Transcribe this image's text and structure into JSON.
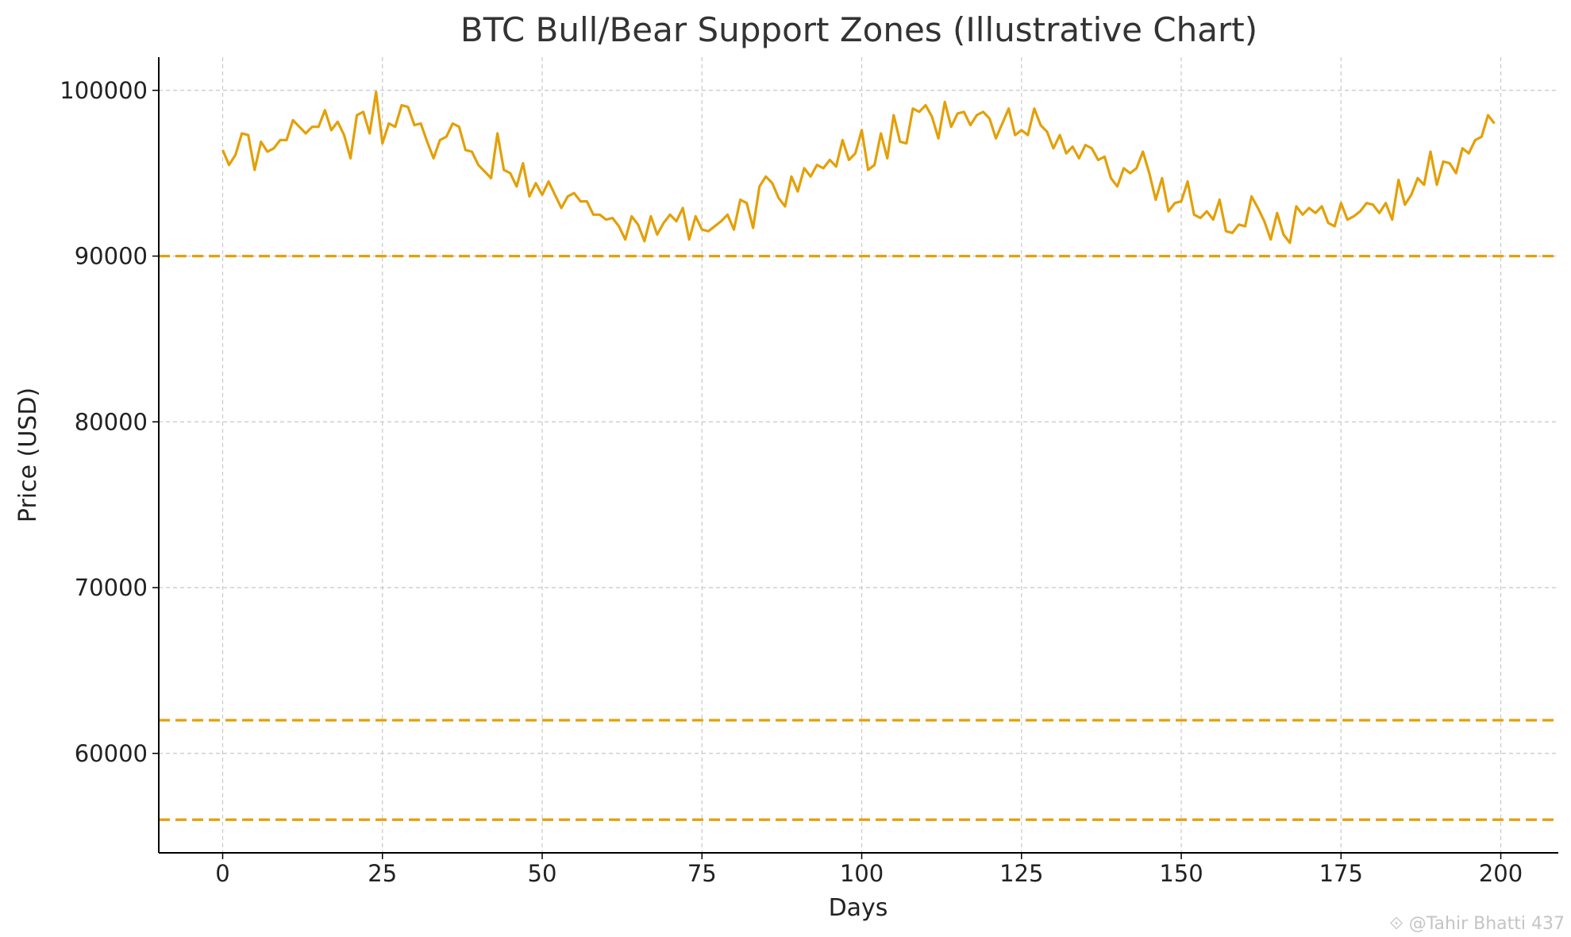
{
  "chart_data": {
    "type": "line",
    "title": "BTC Bull/Bear Support Zones (Illustrative Chart)",
    "xlabel": "Days",
    "ylabel": "Price (USD)",
    "xlim": [
      -10,
      209
    ],
    "ylim": [
      54000,
      102000
    ],
    "x_ticks": [
      0,
      25,
      50,
      75,
      100,
      125,
      150,
      175,
      200
    ],
    "y_ticks": [
      60000,
      70000,
      80000,
      90000,
      100000
    ],
    "grid": true,
    "line_color": "#E3A008",
    "support_color": "#E3A008",
    "support_levels": [
      90000,
      62000,
      56000
    ],
    "series": [
      {
        "x_start": 0,
        "values": [
          96400,
          95500,
          96100,
          97400,
          97300,
          95200,
          96900,
          96300,
          96500,
          97000,
          97000,
          98200,
          97800,
          97400,
          97800,
          97800,
          98800,
          97600,
          98100,
          97300,
          95900,
          98500,
          98700,
          97400,
          99900,
          96800,
          98000,
          97800,
          99100,
          99000,
          97900,
          98000,
          96900,
          95900,
          97000,
          97200,
          98000,
          97800,
          96400,
          96300,
          95500,
          95100,
          94700,
          97400,
          95200,
          95000,
          94200,
          95600,
          93600,
          94400,
          93700,
          94500,
          93700,
          92900,
          93600,
          93800,
          93300,
          93300,
          92500,
          92500,
          92200,
          92300,
          91800,
          91000,
          92400,
          91900,
          90900,
          92400,
          91300,
          92000,
          92500,
          92100,
          92900,
          91000,
          92400,
          91600,
          91500,
          91800,
          92100,
          92500,
          91600,
          93400,
          93200,
          91700,
          94200,
          94800,
          94400,
          93500,
          93000,
          94800,
          93900,
          95300,
          94800,
          95500,
          95300,
          95800,
          95400,
          97000,
          95800,
          96200,
          97600,
          95200,
          95500,
          97400,
          95900,
          98500,
          96900,
          96800,
          98900,
          98700,
          99100,
          98400,
          97100,
          99300,
          97800,
          98600,
          98700,
          97900,
          98500,
          98700,
          98300,
          97100,
          98000,
          98900,
          97300,
          97600,
          97300,
          98900,
          97900,
          97500,
          96500,
          97300,
          96200,
          96600,
          95900,
          96700,
          96500,
          95800,
          96000,
          94700,
          94200,
          95300,
          95000,
          95300,
          96300,
          95000,
          93400,
          94700,
          92700,
          93200,
          93300,
          94500,
          92500,
          92300,
          92700,
          92200,
          93400,
          91500,
          91400,
          91900,
          91800,
          93600,
          92900,
          92100,
          91000,
          92600,
          91300,
          90800,
          93000,
          92500,
          92900,
          92600,
          93000,
          92000,
          91800,
          93200,
          92200,
          92400,
          92700,
          93200,
          93100,
          92600,
          93200,
          92200,
          94600,
          93100,
          93700,
          94700,
          94300,
          96300,
          94300,
          95700,
          95600,
          95000,
          96500,
          96200,
          97000,
          97200,
          98500,
          98000
        ]
      }
    ]
  },
  "watermark": "@Tahir Bhatti 437"
}
